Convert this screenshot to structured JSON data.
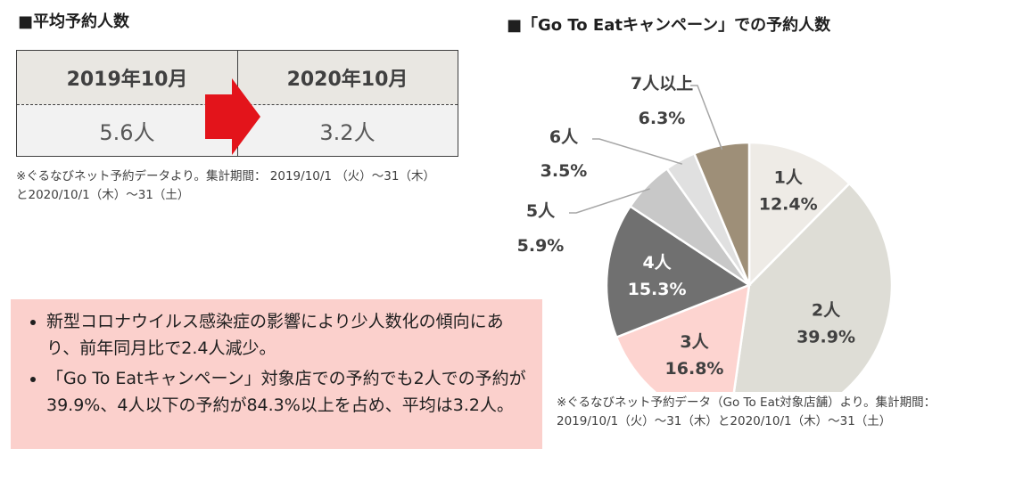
{
  "left_title": "■平均予約人数",
  "right_title": "■「Go To Eatキャンペーン」での予約人数",
  "comparison": {
    "period_2019": "2019年10月",
    "period_2020": "2020年10月",
    "value_2019": "5.6人",
    "value_2020": "3.2人",
    "arrow_color": "#e3141b"
  },
  "left_note": "※ぐるなびネット予約データより。集計期間： 2019/10/1 （火）～31（木）と2020/10/1（木）～31（土）",
  "summary": {
    "bullets": [
      "新型コロナウイルス感染症の影響により少人数化の傾向にあり、前年同月比で2.4人減少。",
      "「Go To Eatキャンペーン」対象店での予約でも2人での予約が39.9%、4人以下の予約が84.3%以上を占め、平均は3.2人。"
    ],
    "background": "#fbd0cc"
  },
  "right_note": "※ぐるなびネット予約データ（Go To Eat対象店舗）より。集計期間： 2019/10/1（火）～31（木）と2020/10/1（木）～31（土）",
  "chart_data": {
    "type": "pie",
    "title": "「Go To Eatキャンペーン」での予約人数",
    "categories": [
      "1人",
      "2人",
      "3人",
      "4人",
      "5人",
      "6人",
      "7人以上"
    ],
    "values": [
      12.4,
      39.9,
      16.8,
      15.3,
      5.9,
      3.5,
      6.3
    ],
    "labels": [
      "12.4%",
      "39.9%",
      "16.8%",
      "15.3%",
      "5.9%",
      "3.5%",
      "6.3%"
    ],
    "colors": [
      "#eeebe6",
      "#deddd6",
      "#fdd4d0",
      "#707070",
      "#c8c8c8",
      "#e0e0e0",
      "#9e8f78"
    ],
    "label_colors": [
      "#404040",
      "#404040",
      "#404040",
      "#ffffff",
      "#404040",
      "#404040",
      "#404040"
    ],
    "start_angle_deg": 0,
    "direction": "clockwise",
    "outside_labels": [
      "5人",
      "6人",
      "7人以上"
    ]
  }
}
